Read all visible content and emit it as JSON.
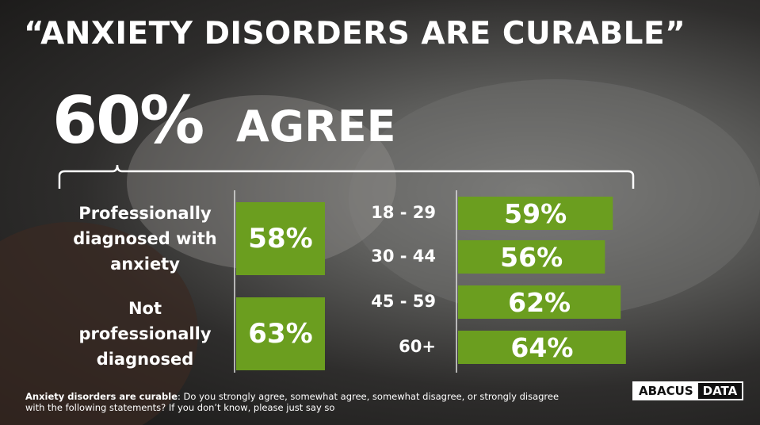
{
  "title": "“ANXIETY DISORDERS ARE CURABLE”",
  "headline": {
    "figure": "60%",
    "text": "AGREE"
  },
  "chart_data": [
    {
      "type": "box",
      "categories": [
        "Professionally diagnosed with anxiety",
        "Not professionally diagnosed"
      ],
      "values": [
        58,
        63
      ],
      "value_labels": [
        "58%",
        "63%"
      ],
      "color": "#6b9e1f"
    },
    {
      "type": "hbar",
      "categories": [
        "18 - 29",
        "30 - 44",
        "45 - 59",
        "60+"
      ],
      "values": [
        59,
        56,
        62,
        64
      ],
      "value_labels": [
        "59%",
        "56%",
        "62%",
        "64%"
      ],
      "color": "#6b9e1f"
    }
  ],
  "footnote": {
    "label": "Anxiety disorders are curable",
    "text": ": Do you strongly agree, somewhat agree, somewhat disagree, or strongly disagree with the following statements? If you don’t know, please just say so"
  },
  "logo": {
    "left": "ABACUS",
    "right": "DATA"
  }
}
